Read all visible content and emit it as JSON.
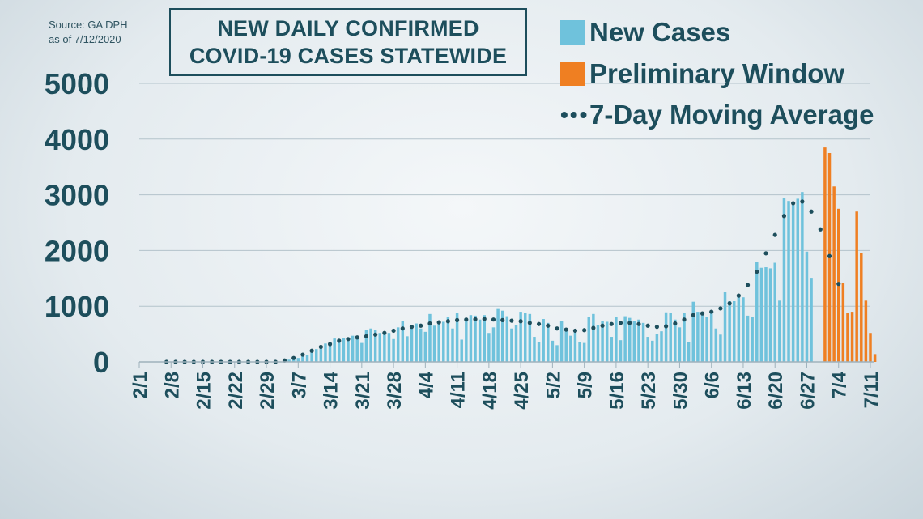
{
  "source": {
    "line1": "Source: GA DPH",
    "line2": "as of 7/12/2020"
  },
  "title": {
    "line1": "NEW DAILY CONFIRMED",
    "line2": "COVID-19 CASES STATEWIDE"
  },
  "colors": {
    "new_cases": "#6fc2dc",
    "preliminary": "#ef7f22",
    "moving_average": "#1d4e5c",
    "grid": "#b4c3cb",
    "text": "#1d4e5c"
  },
  "chart_data": {
    "type": "bar",
    "start_date": "2/1",
    "x_tick_labels": [
      "2/1",
      "2/8",
      "2/15",
      "2/22",
      "2/29",
      "3/7",
      "3/14",
      "3/21",
      "3/28",
      "4/4",
      "4/11",
      "4/18",
      "4/25",
      "5/2",
      "5/9",
      "5/16",
      "5/23",
      "5/30",
      "6/6",
      "6/13",
      "6/20",
      "6/27",
      "7/4",
      "7/11"
    ],
    "y_ticks": [
      0,
      1000,
      2000,
      3000,
      4000,
      5000
    ],
    "ylim": [
      0,
      5000
    ],
    "legend_position": "top-right",
    "series": [
      {
        "name": "New Cases",
        "kind": "bar",
        "color": "#6fc2dc",
        "values": [
          0,
          0,
          0,
          0,
          0,
          0,
          0,
          0,
          0,
          0,
          0,
          0,
          0,
          0,
          0,
          0,
          0,
          0,
          0,
          0,
          0,
          0,
          0,
          0,
          0,
          0,
          0,
          0,
          0,
          0,
          0,
          2,
          10,
          40,
          60,
          70,
          110,
          130,
          200,
          230,
          280,
          330,
          300,
          420,
          400,
          430,
          420,
          470,
          420,
          340,
          580,
          600,
          580,
          520,
          540,
          520,
          410,
          620,
          730,
          460,
          650,
          690,
          600,
          540,
          860,
          650,
          740,
          720,
          810,
          600,
          880,
          400,
          780,
          840,
          830,
          760,
          840,
          520,
          620,
          950,
          920,
          820,
          600,
          660,
          900,
          880,
          860,
          450,
          350,
          770,
          700,
          380,
          300,
          730,
          560,
          470,
          560,
          350,
          340,
          800,
          860,
          660,
          730,
          720,
          450,
          810,
          390,
          820,
          790,
          740,
          760,
          700,
          450,
          380,
          500,
          550,
          890,
          880,
          760,
          620,
          880,
          360,
          1080,
          900,
          900,
          800,
          920,
          600,
          490,
          1250,
          1090,
          1090,
          1170,
          1160,
          830,
          800,
          1790,
          1690,
          1700,
          1680,
          1780,
          1100,
          2950,
          2890,
          2830,
          2930,
          3050,
          1980,
          1510,
          0,
          0,
          0,
          0,
          0,
          0,
          0,
          0,
          0,
          0,
          0,
          0,
          0
        ]
      },
      {
        "name": "Preliminary Window",
        "kind": "bar",
        "color": "#ef7f22",
        "values": [
          0,
          0,
          0,
          0,
          0,
          0,
          0,
          0,
          0,
          0,
          0,
          0,
          0,
          0,
          0,
          0,
          0,
          0,
          0,
          0,
          0,
          0,
          0,
          0,
          0,
          0,
          0,
          0,
          0,
          0,
          0,
          0,
          0,
          0,
          0,
          0,
          0,
          0,
          0,
          0,
          0,
          0,
          0,
          0,
          0,
          0,
          0,
          0,
          0,
          0,
          0,
          0,
          0,
          0,
          0,
          0,
          0,
          0,
          0,
          0,
          0,
          0,
          0,
          0,
          0,
          0,
          0,
          0,
          0,
          0,
          0,
          0,
          0,
          0,
          0,
          0,
          0,
          0,
          0,
          0,
          0,
          0,
          0,
          0,
          0,
          0,
          0,
          0,
          0,
          0,
          0,
          0,
          0,
          0,
          0,
          0,
          0,
          0,
          0,
          0,
          0,
          0,
          0,
          0,
          0,
          0,
          0,
          0,
          0,
          0,
          0,
          0,
          0,
          0,
          0,
          0,
          0,
          0,
          0,
          0,
          0,
          0,
          0,
          0,
          0,
          0,
          0,
          0,
          0,
          0,
          0,
          0,
          0,
          0,
          0,
          0,
          0,
          0,
          0,
          0,
          0,
          0,
          0,
          0,
          0,
          0,
          0,
          0,
          0,
          0,
          0,
          3850,
          3750,
          3150,
          2750,
          1420,
          880,
          900,
          2700,
          1950,
          1100,
          520,
          140,
          0
        ]
      },
      {
        "name": "7-Day Moving Average",
        "kind": "line",
        "style": "dotted",
        "color": "#1d4e5c",
        "values": [
          null,
          null,
          null,
          null,
          null,
          null,
          0,
          0,
          0,
          0,
          0,
          0,
          0,
          0,
          0,
          0,
          0,
          0,
          0,
          0,
          0,
          0,
          0,
          0,
          0,
          0,
          0,
          0,
          0,
          0,
          0,
          10,
          25,
          45,
          70,
          95,
          130,
          170,
          200,
          240,
          270,
          300,
          320,
          360,
          380,
          390,
          410,
          430,
          440,
          450,
          460,
          480,
          490,
          510,
          520,
          540,
          560,
          580,
          600,
          610,
          630,
          640,
          650,
          660,
          690,
          700,
          710,
          720,
          730,
          740,
          750,
          755,
          760,
          760,
          765,
          770,
          770,
          770,
          760,
          760,
          750,
          750,
          740,
          740,
          730,
          720,
          700,
          690,
          680,
          670,
          650,
          620,
          600,
          590,
          580,
          570,
          560,
          560,
          570,
          590,
          610,
          630,
          650,
          670,
          680,
          690,
          700,
          700,
          700,
          690,
          680,
          660,
          650,
          640,
          630,
          630,
          640,
          660,
          690,
          720,
          760,
          800,
          840,
          860,
          870,
          880,
          900,
          920,
          960,
          1000,
          1050,
          1110,
          1190,
          1280,
          1380,
          1490,
          1620,
          1780,
          1950,
          2100,
          2280,
          2450,
          2620,
          2750,
          2850,
          2900,
          2880,
          2800,
          2700,
          2550,
          2380,
          2150,
          1900,
          1650,
          1400,
          1200
        ]
      }
    ]
  }
}
